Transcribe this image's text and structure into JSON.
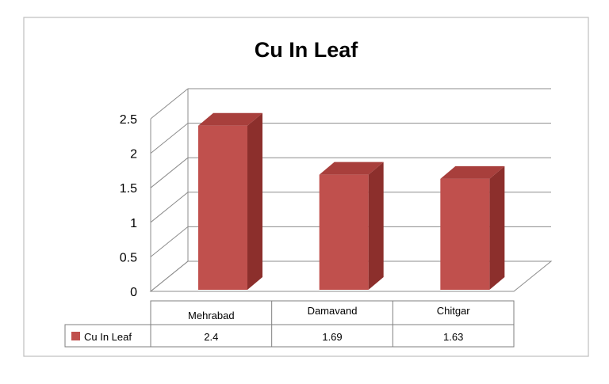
{
  "chart_data": {
    "type": "bar",
    "title": "Cu In Leaf",
    "categories": [
      "Mehrabad",
      "Damavand",
      "Chitgar"
    ],
    "series": [
      {
        "name": "Cu In Leaf",
        "values": [
          2.4,
          1.69,
          1.63
        ],
        "value_labels": [
          "2.4",
          "1.69",
          "1.63"
        ]
      }
    ],
    "ylim": [
      0,
      2.5
    ],
    "yticks": [
      "0",
      "0.5",
      "1",
      "1.5",
      "2",
      "2.5"
    ],
    "grid": true,
    "legend": "data-table-left",
    "bar_color": "#c0504d",
    "bar_side_color": "#8c2f2c",
    "bar_top_color": "#a83f3c"
  }
}
